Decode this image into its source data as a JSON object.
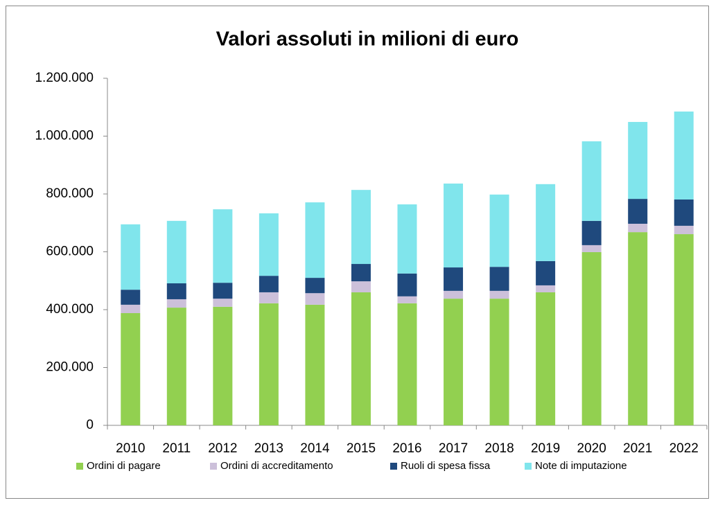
{
  "chart_data": {
    "type": "stacked_bar",
    "title": "Valori assoluti in milioni di euro",
    "categories": [
      "2010",
      "2011",
      "2012",
      "2013",
      "2014",
      "2015",
      "2016",
      "2017",
      "2018",
      "2019",
      "2020",
      "2021",
      "2022"
    ],
    "series": [
      {
        "name": "Ordini di pagare",
        "color": "#92d050",
        "values": [
          388000,
          407000,
          410000,
          422000,
          417000,
          460000,
          422000,
          438000,
          438000,
          460000,
          599000,
          668000,
          661000
        ]
      },
      {
        "name": "Ordini di accreditamento",
        "color": "#ccc0da",
        "values": [
          29000,
          29000,
          28000,
          38000,
          40000,
          38000,
          24000,
          27000,
          27000,
          24000,
          24000,
          29000,
          29000
        ]
      },
      {
        "name": "Ruoli di spesa fissa",
        "color": "#1f497d",
        "values": [
          52000,
          55000,
          55000,
          57000,
          53000,
          60000,
          79000,
          81000,
          83000,
          84000,
          84000,
          86000,
          91000
        ]
      },
      {
        "name": "Note di imputazione",
        "color": "#80e5ec",
        "values": [
          226000,
          216000,
          254000,
          216000,
          261000,
          256000,
          239000,
          290000,
          250000,
          266000,
          275000,
          266000,
          304000
        ]
      }
    ],
    "ylim": [
      0,
      1200000
    ],
    "yticks": [
      0,
      {
        "value": 200000,
        "label": "200.000"
      },
      {
        "value": 400000,
        "label": "400.000"
      },
      {
        "value": 600000,
        "label": "600.000"
      },
      {
        "value": 800000,
        "label": "800.000"
      },
      {
        "value": 1000000,
        "label": "1.000.000"
      },
      {
        "value": 1200000,
        "label": "1.200.000"
      }
    ],
    "grid": false,
    "legend": "bottom"
  }
}
